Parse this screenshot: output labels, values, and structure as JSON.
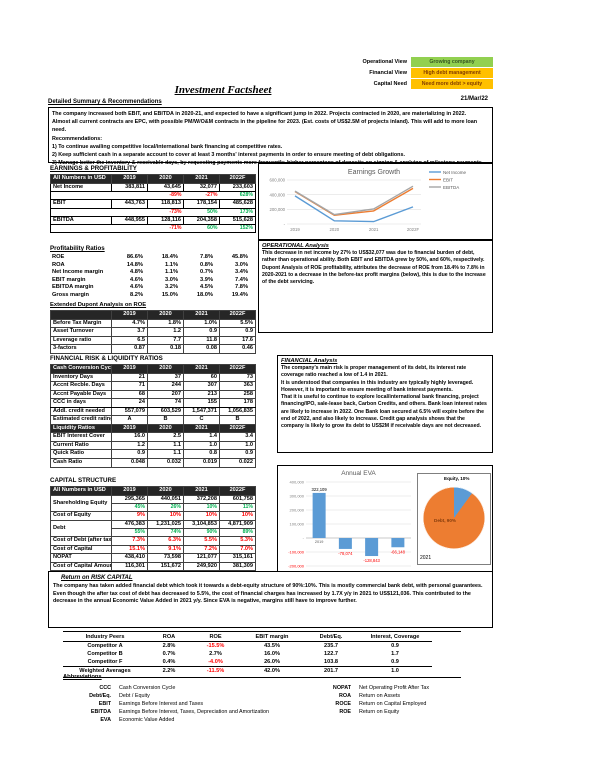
{
  "header": {
    "title": "Investment Factsheet",
    "date": "21/Mar/22",
    "views": [
      {
        "label": "Operational View",
        "value": "Growing company",
        "color": "#92D050",
        "text_color": "#385723"
      },
      {
        "label": "Financial View",
        "value": "High debt management",
        "color": "#FFC000",
        "text_color": "#833C00"
      },
      {
        "label": "Capital Need",
        "value": "Need more debt > equity",
        "color": "#FFC000",
        "text_color": "#833C00"
      }
    ]
  },
  "summary": {
    "heading": "Detailed Summary & Recommendations",
    "lines": [
      "The company increased both EBIT, and EBITDA in 2020-21, and expected to have a significant jump in 2022. Projects contracted in 2020, are materializing in 2022.",
      "Almost all current contracts are EPC, with possible PM/W/O&M contracts in the pipeline for 2023. (Est. costs of US$2.5M of projects inland). This will add to more loan need.",
      "Recommendations:",
      "1) To continue availing competitive local/international bank financing at competitive rates.",
      "2) Keep sufficient cash in a separate account to cover at least 3 months' interest payments in order to ensure meeting of debt obligations.",
      "3) Manage better the inventory & receivable days, by requesting payments more frequently, higher percentage of deposits on signing & applying of milestone payments."
    ]
  },
  "years": [
    "2019",
    "2020",
    "2021",
    "2022F"
  ],
  "earnings": {
    "title": "EARNINGS & PROFITABILITY",
    "unit_label": "All Numbers in USD",
    "rows": [
      {
        "label": "Net Income",
        "values": [
          "383,811",
          "43,645",
          "32,077",
          "233,603"
        ],
        "growth": [
          "",
          "-89%",
          "-27%",
          "628%"
        ]
      },
      {
        "label": "EBIT",
        "values": [
          "443,763",
          "118,813",
          "178,154",
          "485,628"
        ],
        "growth": [
          "",
          "-73%",
          "50%",
          "173%"
        ]
      },
      {
        "label": "EBITDA",
        "values": [
          "448,955",
          "128,116",
          "204,358",
          "515,628"
        ],
        "growth": [
          "",
          "-71%",
          "60%",
          "152%"
        ]
      }
    ]
  },
  "ratios": {
    "heading": "Profitability Ratios",
    "rows": [
      {
        "label": "ROE",
        "cells": [
          "86.6%",
          "18.4%",
          "7.8%",
          "45.8%"
        ]
      },
      {
        "label": "ROA",
        "cells": [
          "14.8%",
          "1.1%",
          "0.8%",
          "3.0%"
        ]
      },
      {
        "label": "Net Income margin",
        "cells": [
          "4.8%",
          "1.1%",
          "0.7%",
          "3.4%"
        ]
      },
      {
        "label": "EBIT margin",
        "cells": [
          "4.6%",
          "3.0%",
          "3.9%",
          "7.4%"
        ]
      },
      {
        "label": "EBITDA margin",
        "cells": [
          "4.6%",
          "3.2%",
          "4.5%",
          "7.8%"
        ]
      },
      {
        "label": "Gross margin",
        "cells": [
          "8.2%",
          "15.0%",
          "18.0%",
          "19.4%"
        ]
      }
    ]
  },
  "dupont": {
    "heading": "Extended Dupont Analysis on ROE",
    "rows": [
      {
        "label": "Before Tax Margin",
        "cells": [
          "4.7%",
          "1.8%",
          "1.0%",
          "5.5%"
        ]
      },
      {
        "label": "Asset Turnover",
        "cells": [
          "3.7",
          "1.2",
          "0.9",
          "0.9"
        ]
      },
      {
        "label": "Leverage ratio",
        "cells": [
          "6.5",
          "7.7",
          "11.8",
          "17.6"
        ]
      },
      {
        "label": "3-factors",
        "cells": [
          "0.87",
          "0.18",
          "0.08",
          "0.46"
        ]
      }
    ]
  },
  "risk": {
    "title": "FINANCIAL RISK & LIQUIDITY RATIOS",
    "header_label": "Cash Conversion Cycle",
    "rows": [
      {
        "label": "Inventory Days",
        "cells": [
          "21",
          "37",
          "60",
          "73"
        ]
      },
      {
        "label": "Accnt Recble. Days",
        "cells": [
          "71",
          "244",
          "307",
          "363"
        ]
      },
      {
        "label": "Accnt Payable Days",
        "cells": [
          "68",
          "207",
          "213",
          "258"
        ]
      },
      {
        "label": "CCC in days",
        "cells": [
          "24",
          "74",
          "155",
          "178"
        ],
        "style": "emph"
      },
      {
        "label": "Addl. credit needed",
        "cells": [
          "557,079",
          "603,529",
          "1,547,371",
          "1,056,835"
        ]
      },
      {
        "label": "Estimated credit rating",
        "cells": [
          "A",
          "B",
          "C",
          "B"
        ],
        "style": "rating"
      },
      {
        "label": "Liquidity Ratios",
        "cells": [
          "2019",
          "2020",
          "2021",
          "2022F"
        ],
        "style": "dark"
      },
      {
        "label": "EBIT Interest Cover",
        "cells": [
          "16.0",
          "2.5",
          "1.4",
          "3.4"
        ]
      },
      {
        "label": "Current Ratio",
        "cells": [
          "1.2",
          "1.1",
          "1.0",
          "1.0"
        ]
      },
      {
        "label": "Quick Ratio",
        "cells": [
          "0.9",
          "1.1",
          "0.8",
          "0.9"
        ]
      },
      {
        "label": "Cash Ratio",
        "cells": [
          "0.048",
          "0.032",
          "0.019",
          "0.022"
        ]
      }
    ]
  },
  "capital": {
    "title": "CAPITAL STRUCTURE",
    "unit_label": "All Numbers in USD",
    "rows": [
      {
        "label": "Shareholding Equity",
        "cells": [
          "295,365",
          "440,051",
          "372,208",
          "601,758"
        ],
        "pct": [
          "45%",
          "26%",
          "10%",
          "11%"
        ]
      },
      {
        "label": "Cost of Equity",
        "cells": [
          "9%",
          "10%",
          "10%",
          "10%"
        ],
        "style": "red"
      },
      {
        "label": "Debt",
        "cells": [
          "476,383",
          "1,231,025",
          "3,104,853",
          "4,871,909"
        ],
        "pct": [
          "55%",
          "74%",
          "90%",
          "89%"
        ]
      },
      {
        "label": "Cost of Debt (after tax)",
        "cells": [
          "7.3%",
          "6.3%",
          "5.5%",
          "5.3%"
        ],
        "style": "red"
      },
      {
        "label": "Cost of Capital",
        "cells": [
          "15.1%",
          "9.1%",
          "7.2%",
          "7.0%"
        ],
        "style": "red"
      },
      {
        "label": "NOPAT",
        "cells": [
          "438,410",
          "73,598",
          "121,077",
          "315,161"
        ]
      },
      {
        "label": "Cost of Capital Amount",
        "cells": [
          "116,301",
          "151,672",
          "249,920",
          "381,309"
        ]
      },
      {
        "label": "Annual EVA",
        "cells": [
          "322,109",
          "-78,074",
          "-128,843",
          "-66,148"
        ],
        "style": "autoneg"
      },
      {
        "label": "ROCE",
        "cells": [
          "56.8%",
          "7.1%",
          "5.0%",
          "5.8%"
        ]
      }
    ]
  },
  "operational_analysis": {
    "heading": "OPERATIONAL Analysis",
    "paragraphs": [
      "This decrease in net income by 27% to US$32,077 was due to financial burden of debt, rather than operational ability. Both EBIT and EBITDA grew by 50%, and 60%, respectively.",
      "Dupont Analysis of ROE profitability, attributes the decrease of ROE from 18.4% to 7.8% in 2020-2021 to a decrease in the before-tax profit margins (below), this is due to the increase of the debt servicing."
    ]
  },
  "financial_analysis": {
    "heading": "FINANCIAL Analysis",
    "paragraphs": [
      "The company's main risk is proper management of its debt, its interest rate coverage ratio reached a low of 1.4 in 2021.",
      "It is understood that companies in this industry are typically highly leveraged. However, it is important to ensure meeting of bank interest payments.",
      "That it is useful to continue to explore local/international bank financing, project financing/IPO, sale-lease back, Carbon Credits, and others. Bank loan interest rates are likely to increase in 2022. One Bank loan secured at 6.5% will expire before the end of 2022, and also likely to increase. Credit gap analysis shows that the company is likely to grow its debt to US$2M if receivable days are not decreased."
    ]
  },
  "risk_capital": {
    "heading": "Return on RISK CAPITAL",
    "paragraphs": [
      "The company has taken added financial debt which took it towards a debt-equity structure of 90%:10%. This is mostly commercial bank debt, with personal guarantees. Even though the after tax cost of debt has decreased to 5.5%, the cost of financial charges has increased by 1.7X y/y in 2021 to US$121,036. This contributed to the decrease in the annual Economic Value Added in 2021 y/y. Since EVA is negative, margins still have to improve further."
    ]
  },
  "peers": {
    "headers": [
      "Industry Peers",
      "ROA",
      "ROE",
      "EBIT margin",
      "Debt/Eq.",
      "Interest, Coverage"
    ],
    "rows": [
      {
        "label": "Competitor A",
        "cells": [
          "2.8%",
          "-15.5%",
          "43.5%",
          "235.7",
          "0.9"
        ]
      },
      {
        "label": "Competitor B",
        "cells": [
          "0.7%",
          "2.7%",
          "16.0%",
          "122.7",
          "1.7"
        ]
      },
      {
        "label": "Competitor F",
        "cells": [
          "0.4%",
          "-4.0%",
          "26.0%",
          "103.8",
          "0.9"
        ]
      },
      {
        "label": "Weighted Averages",
        "cells": [
          "2.2%",
          "-11.5%",
          "42.0%",
          "201.7",
          "1.0"
        ],
        "style": "total"
      }
    ]
  },
  "abbreviations": {
    "heading": "Abbreviations",
    "left": [
      {
        "key": "CCC",
        "def": "Cash Conversion Cycle"
      },
      {
        "key": "Debt/Eq.",
        "def": "Debt / Equity"
      },
      {
        "key": "EBIT",
        "def": "Earnings Before Interest and Taxes"
      },
      {
        "key": "EBITDA",
        "def": "Earnings Before Interest, Taxes, Depreciation and Amortization"
      },
      {
        "key": "EVA",
        "def": "Economic Value Added"
      }
    ],
    "right": [
      {
        "key": "NOPAT",
        "def": "Net Operating Profit After Tax"
      },
      {
        "key": "ROA",
        "def": "Return on Assets"
      },
      {
        "key": "ROCE",
        "def": "Return on Capital Employed"
      },
      {
        "key": "ROE",
        "def": "Return on Equity"
      }
    ]
  },
  "colors": {
    "negative": "#FF0000",
    "positive": "#00B050",
    "header_fill": "#262626",
    "bar_blue": "#5B9BD5",
    "orange": "#ED7D31"
  },
  "chart_data": [
    {
      "type": "line",
      "title": "Earnings Growth",
      "x": [
        "2019",
        "2020",
        "2021",
        "2022F"
      ],
      "series": [
        {
          "name": "Net Income",
          "color": "#5B9BD5",
          "values": [
            383811,
            43645,
            32077,
            233603
          ]
        },
        {
          "name": "EBIT",
          "color": "#ED7D31",
          "values": [
            443763,
            118813,
            178154,
            485628
          ]
        },
        {
          "name": "EBITDA",
          "color": "#A5A5A5",
          "values": [
            448955,
            128116,
            204358,
            515628
          ]
        }
      ],
      "ylim": [
        0,
        600000
      ],
      "yticks": [
        600000,
        400000,
        200000,
        0
      ],
      "grid": true,
      "legend_position": "top-right"
    },
    {
      "type": "bar",
      "title": "Annual EVA",
      "categories": [
        "2019",
        "2020",
        "2021",
        "2022F"
      ],
      "values": [
        322109,
        -78074,
        -128843,
        -66148
      ],
      "labels": [
        "322,109",
        "-78,074",
        "-128,843",
        "-66,148"
      ],
      "bar_color": "#5B9BD5",
      "ylim": [
        -200000,
        400000
      ],
      "yticks": [
        400000,
        300000,
        200000,
        100000,
        0,
        -100000,
        -200000
      ],
      "grid": true
    },
    {
      "type": "pie",
      "title": "2021",
      "slices": [
        {
          "label": "Equity",
          "value": 10,
          "color": "#5B9BD5"
        },
        {
          "label": "Debt",
          "value": 90,
          "color": "#ED7D31"
        }
      ],
      "labels": {
        "top": "Equity, 10%",
        "inside": "Debt, 90%",
        "year": "2021"
      }
    }
  ]
}
